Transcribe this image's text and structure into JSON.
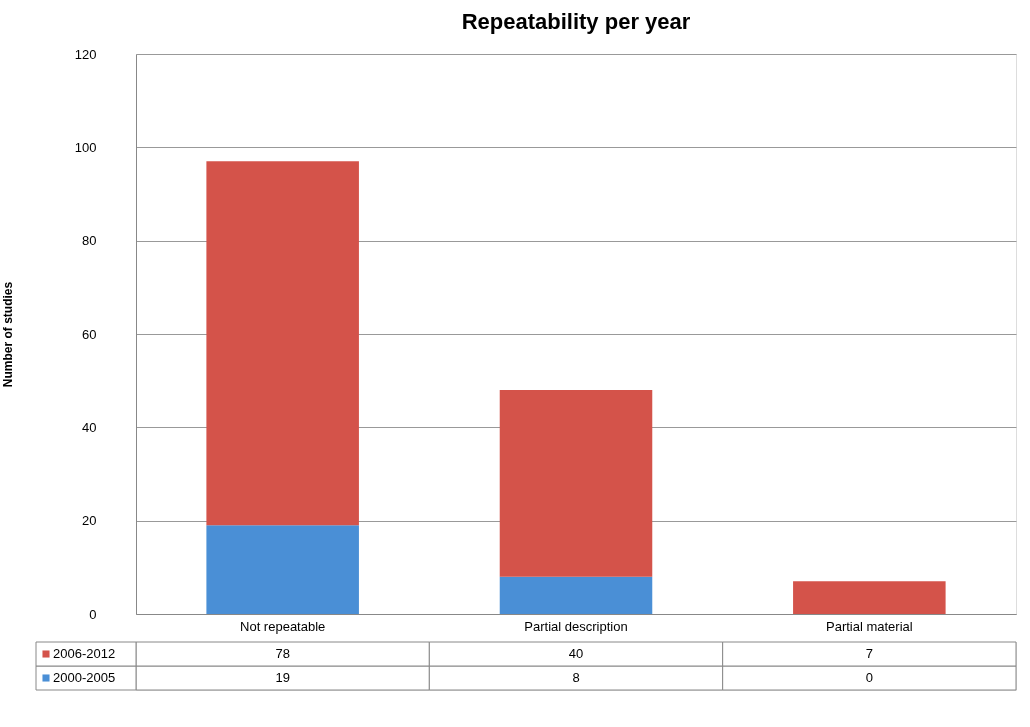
{
  "chart_data": {
    "type": "bar",
    "title": "Repeatability  per year",
    "ylabel": "Number of studies",
    "categories": [
      "Not repeatable",
      "Partial description",
      "Partial material"
    ],
    "stacked": true,
    "ylim": [
      0,
      120
    ],
    "yticks": [
      0,
      20,
      40,
      60,
      80,
      100,
      120
    ],
    "grid": "y",
    "legend": "bottom",
    "data_labels": true,
    "series": [
      {
        "name": "2000-2005",
        "color": "#4a8fd6",
        "values": [
          19,
          8,
          0
        ]
      },
      {
        "name": "2006-2012",
        "color": "#d4534a",
        "values": [
          78,
          40,
          7
        ]
      }
    ]
  }
}
